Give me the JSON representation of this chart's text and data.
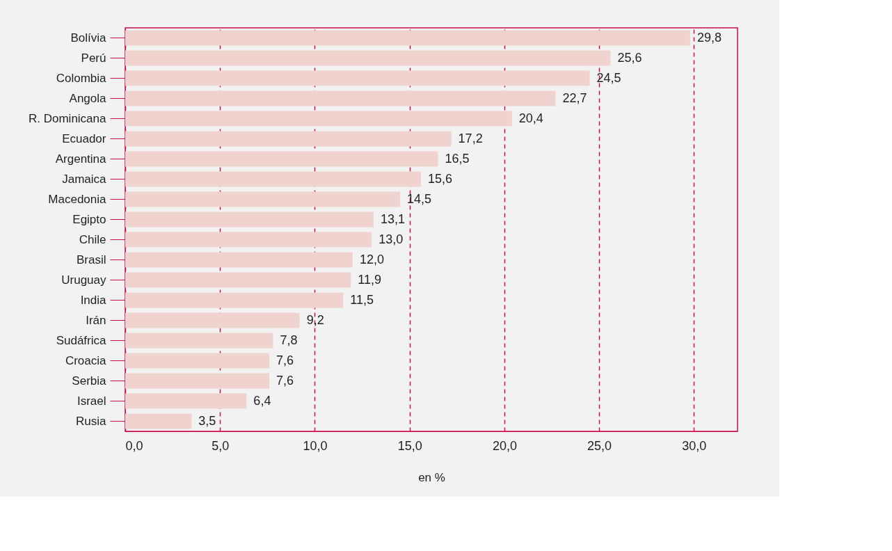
{
  "chart_data": {
    "type": "bar",
    "orientation": "horizontal",
    "xlabel": "en %",
    "categories": [
      "Bolívia",
      "Perú",
      "Colombia",
      "Angola",
      "R. Dominicana",
      "Ecuador",
      "Argentina",
      "Jamaica",
      "Macedonia",
      "Egipto",
      "Chile",
      "Brasil",
      "Uruguay",
      "India",
      "Irán",
      "Sudáfrica",
      "Croacia",
      "Serbia",
      "Israel",
      "Rusia"
    ],
    "values": [
      29.8,
      25.6,
      24.5,
      22.7,
      20.4,
      17.2,
      16.5,
      15.6,
      14.5,
      13.1,
      13.0,
      12.0,
      11.9,
      11.5,
      9.2,
      7.8,
      7.6,
      7.6,
      6.4,
      3.5
    ],
    "value_labels": [
      "29,8",
      "25,6",
      "24,5",
      "22,7",
      "20,4",
      "17,2",
      "16,5",
      "15,6",
      "14,5",
      "13,1",
      "13,0",
      "12,0",
      "11,9",
      "11,5",
      "9,2",
      "7,8",
      "7,6",
      "7,6",
      "6,4",
      "3,5"
    ],
    "color": "#f0d3ce",
    "xlim": [
      0,
      32.3
    ],
    "xticks": [
      {
        "value": 0,
        "label": "0,0"
      },
      {
        "value": 5,
        "label": "5,0"
      },
      {
        "value": 10,
        "label": "10,0"
      },
      {
        "value": 15,
        "label": "15,0"
      },
      {
        "value": 20,
        "label": "20,0"
      },
      {
        "value": 25,
        "label": "25,0"
      },
      {
        "value": 30,
        "label": "30,0"
      }
    ],
    "grid": "x"
  }
}
